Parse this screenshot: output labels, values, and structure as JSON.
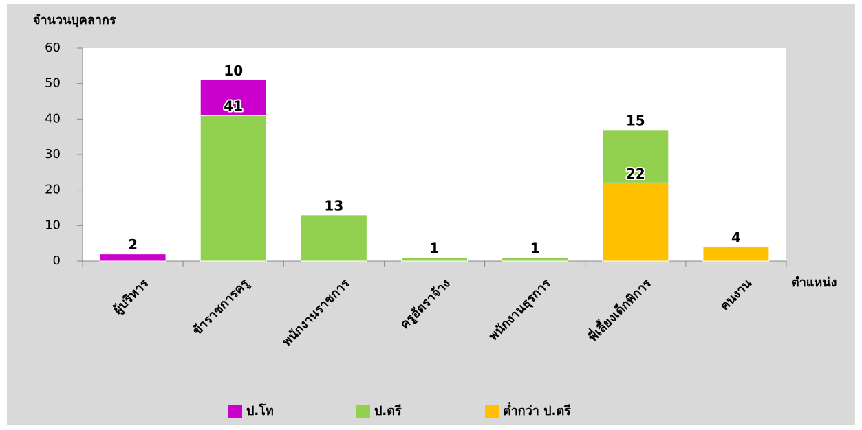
{
  "chart_data": {
    "type": "stacked_bar",
    "y_label": "จำนวนบุคลากร",
    "x_label": "ตำแหน่ง",
    "categories": [
      "ผู้บริหาร",
      "ข้าราชการครู",
      "พนักงานราชการ",
      "ครูอัตราจ้าง",
      "พนักงานธุรการ",
      "พี่เลี้ยงเด็กพิการ",
      "คนงาน"
    ],
    "series": [
      {
        "name": "ป.โท",
        "color": "#cc00cc",
        "values": [
          2,
          10,
          null,
          null,
          null,
          null,
          null
        ]
      },
      {
        "name": "ป.ตรี",
        "color": "#92d050",
        "values": [
          null,
          41,
          13,
          1,
          1,
          15,
          null
        ]
      },
      {
        "name": "ต่ำกว่า ป.ตรี",
        "color": "#ffc000",
        "values": [
          null,
          null,
          null,
          null,
          null,
          22,
          4
        ]
      }
    ],
    "stack_order": [
      "ต่ำกว่า ป.ตรี",
      "ป.ตรี",
      "ป.โท"
    ],
    "ylim": [
      0,
      60
    ],
    "yticks": [
      0,
      10,
      20,
      30,
      40,
      50,
      60
    ]
  }
}
